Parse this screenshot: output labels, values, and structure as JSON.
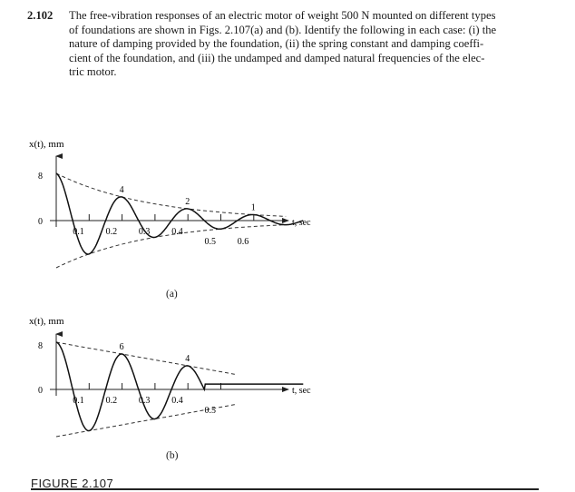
{
  "problem": {
    "number": "2.102",
    "lines": [
      "The free-vibration responses of an electric motor of weight 500 N mounted on different types",
      "of foundations are shown in Figs. 2.107(a) and (b). Identify the following in each case: (i) the",
      "nature of damping provided by the foundation, (ii) the spring constant and damping coeffi-",
      "cient of the foundation, and (iii) the undamped and damped natural frequencies of the elec-",
      "tric motor."
    ]
  },
  "figure_title": "FIGURE 2.107",
  "panels": [
    {
      "caption": "(a)",
      "ylabel": "x(t), mm",
      "xlabel": "t, sec",
      "y_tick_top": "8",
      "y_tick_zero": "0",
      "peak_labels": [
        "4",
        "2",
        "1"
      ],
      "x_ticks": [
        "0.1",
        "0.2",
        "0.3",
        "0.4",
        "0.5",
        "0.6"
      ]
    },
    {
      "caption": "(b)",
      "ylabel": "x(t), mm",
      "xlabel": "t, sec",
      "y_tick_top": "8",
      "y_tick_zero": "0",
      "peak_labels": [
        "6",
        "4"
      ],
      "x_ticks": [
        "0.1",
        "0.2",
        "0.3",
        "0.4",
        "0.5"
      ]
    }
  ],
  "chart_data": [
    {
      "type": "line",
      "title": "(a)",
      "xlabel": "t, sec",
      "ylabel": "x(t), mm",
      "damping": "viscous (exponential envelope)",
      "peaks": [
        {
          "t": 0.0,
          "x": 8
        },
        {
          "t": 0.2,
          "x": 4
        },
        {
          "t": 0.4,
          "x": 2
        },
        {
          "t": 0.6,
          "x": 1
        }
      ],
      "period": 0.2,
      "xlim": [
        0,
        0.75
      ],
      "ylim": [
        -8,
        8
      ]
    },
    {
      "type": "line",
      "title": "(b)",
      "xlabel": "t, sec",
      "ylabel": "x(t), mm",
      "damping": "Coulomb (linear envelope)",
      "peaks": [
        {
          "t": 0.0,
          "x": 8
        },
        {
          "t": 0.2,
          "x": 6
        },
        {
          "t": 0.4,
          "x": 4
        }
      ],
      "period": 0.2,
      "xlim": [
        0,
        0.75
      ],
      "ylim": [
        -8,
        8
      ]
    }
  ]
}
